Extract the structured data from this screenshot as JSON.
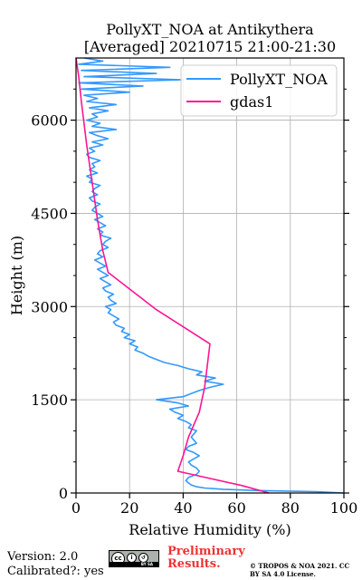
{
  "chart_data": {
    "type": "line",
    "title": "PollyXT_NOA at Antikythera",
    "subtitle": "[Averaged] 20210715 21:00-21:30",
    "xlabel": "Relative Humidity (%)",
    "ylabel": "Height (m)",
    "xlim": [
      0,
      100
    ],
    "ylim": [
      0,
      7000
    ],
    "xticks": [
      0,
      20,
      40,
      60,
      80,
      100
    ],
    "yticks": [
      0,
      1500,
      3000,
      4500,
      6000
    ],
    "grid": true,
    "legend_position": "top-right",
    "series": [
      {
        "name": "PollyXT_NOA",
        "color": "#3399ff",
        "points": [
          [
            100,
            0
          ],
          [
            90,
            20
          ],
          [
            68,
            40
          ],
          [
            55,
            60
          ],
          [
            48,
            80
          ],
          [
            45,
            100
          ],
          [
            43,
            130
          ],
          [
            42,
            160
          ],
          [
            41,
            200
          ],
          [
            42,
            250
          ],
          [
            45,
            300
          ],
          [
            46,
            350
          ],
          [
            45,
            400
          ],
          [
            43,
            450
          ],
          [
            42,
            500
          ],
          [
            44,
            550
          ],
          [
            46,
            600
          ],
          [
            44,
            650
          ],
          [
            41,
            700
          ],
          [
            42,
            750
          ],
          [
            45,
            800
          ],
          [
            44,
            850
          ],
          [
            43,
            900
          ],
          [
            44,
            950
          ],
          [
            45,
            1000
          ],
          [
            42,
            1050
          ],
          [
            43,
            1100
          ],
          [
            41,
            1150
          ],
          [
            38,
            1200
          ],
          [
            40,
            1250
          ],
          [
            37,
            1300
          ],
          [
            35,
            1350
          ],
          [
            42,
            1400
          ],
          [
            38,
            1450
          ],
          [
            30,
            1500
          ],
          [
            40,
            1550
          ],
          [
            43,
            1600
          ],
          [
            46,
            1650
          ],
          [
            50,
            1700
          ],
          [
            55,
            1750
          ],
          [
            48,
            1800
          ],
          [
            52,
            1850
          ],
          [
            45,
            1900
          ],
          [
            47,
            1950
          ],
          [
            42,
            2000
          ],
          [
            38,
            2050
          ],
          [
            33,
            2100
          ],
          [
            30,
            2150
          ],
          [
            27,
            2200
          ],
          [
            25,
            2250
          ],
          [
            22,
            2300
          ],
          [
            23,
            2350
          ],
          [
            20,
            2400
          ],
          [
            22,
            2450
          ],
          [
            18,
            2500
          ],
          [
            20,
            2550
          ],
          [
            17,
            2600
          ],
          [
            18,
            2650
          ],
          [
            15,
            2700
          ],
          [
            14,
            2750
          ],
          [
            16,
            2800
          ],
          [
            14,
            2850
          ],
          [
            12,
            2900
          ],
          [
            13,
            2950
          ],
          [
            11,
            3000
          ],
          [
            15,
            3050
          ],
          [
            13,
            3100
          ],
          [
            12,
            3150
          ],
          [
            14,
            3200
          ],
          [
            11,
            3250
          ],
          [
            10,
            3300
          ],
          [
            13,
            3350
          ],
          [
            11,
            3400
          ],
          [
            9,
            3450
          ],
          [
            12,
            3500
          ],
          [
            10,
            3550
          ],
          [
            8,
            3600
          ],
          [
            11,
            3650
          ],
          [
            9,
            3700
          ],
          [
            7,
            3750
          ],
          [
            10,
            3800
          ],
          [
            8,
            3850
          ],
          [
            9,
            3900
          ],
          [
            12,
            3950
          ],
          [
            10,
            4000
          ],
          [
            11,
            4050
          ],
          [
            13,
            4100
          ],
          [
            9,
            4150
          ],
          [
            10,
            4200
          ],
          [
            8,
            4250
          ],
          [
            11,
            4300
          ],
          [
            9,
            4350
          ],
          [
            7,
            4400
          ],
          [
            10,
            4450
          ],
          [
            8,
            4500
          ],
          [
            6,
            4550
          ],
          [
            7,
            4600
          ],
          [
            9,
            4650
          ],
          [
            6,
            4700
          ],
          [
            5,
            4750
          ],
          [
            8,
            4800
          ],
          [
            6,
            4850
          ],
          [
            7,
            4900
          ],
          [
            9,
            4950
          ],
          [
            5,
            5000
          ],
          [
            6,
            5050
          ],
          [
            4,
            5100
          ],
          [
            8,
            5150
          ],
          [
            5,
            5200
          ],
          [
            7,
            5250
          ],
          [
            6,
            5300
          ],
          [
            9,
            5350
          ],
          [
            5,
            5400
          ],
          [
            4,
            5450
          ],
          [
            7,
            5500
          ],
          [
            5,
            5550
          ],
          [
            10,
            5600
          ],
          [
            6,
            5650
          ],
          [
            12,
            5700
          ],
          [
            8,
            5750
          ],
          [
            5,
            5800
          ],
          [
            15,
            5850
          ],
          [
            6,
            5900
          ],
          [
            9,
            5950
          ],
          [
            4,
            6000
          ],
          [
            8,
            6050
          ],
          [
            6,
            6100
          ],
          [
            12,
            6150
          ],
          [
            5,
            6200
          ],
          [
            15,
            6250
          ],
          [
            4,
            6300
          ],
          [
            8,
            6350
          ],
          [
            3,
            6400
          ],
          [
            20,
            6450
          ],
          [
            2,
            6500
          ],
          [
            25,
            6550
          ],
          [
            1,
            6600
          ],
          [
            40,
            6650
          ],
          [
            3,
            6700
          ],
          [
            30,
            6750
          ],
          [
            2,
            6800
          ],
          [
            35,
            6850
          ],
          [
            1,
            6900
          ],
          [
            10,
            6950
          ],
          [
            3,
            7000
          ]
        ]
      },
      {
        "name": "gdas1",
        "color": "#ff1493",
        "points": [
          [
            72,
            0
          ],
          [
            62,
            120
          ],
          [
            38,
            350
          ],
          [
            40,
            600
          ],
          [
            42,
            900
          ],
          [
            46,
            1300
          ],
          [
            48,
            1700
          ],
          [
            50,
            2400
          ],
          [
            30,
            2950
          ],
          [
            12,
            3550
          ],
          [
            10,
            3900
          ],
          [
            8,
            4400
          ],
          [
            6,
            5000
          ],
          [
            4,
            5600
          ],
          [
            2,
            6300
          ],
          [
            1,
            6700
          ],
          [
            0,
            7000
          ]
        ]
      }
    ]
  },
  "footer": {
    "version": "Version: 2.0",
    "calibrated": "Calibrated?: yes",
    "preliminary": "Preliminary Results.",
    "copyright": "© TROPOS & NOA 2021. CC BY SA 4.0 License.",
    "cc_badge_text": "BY SA"
  }
}
